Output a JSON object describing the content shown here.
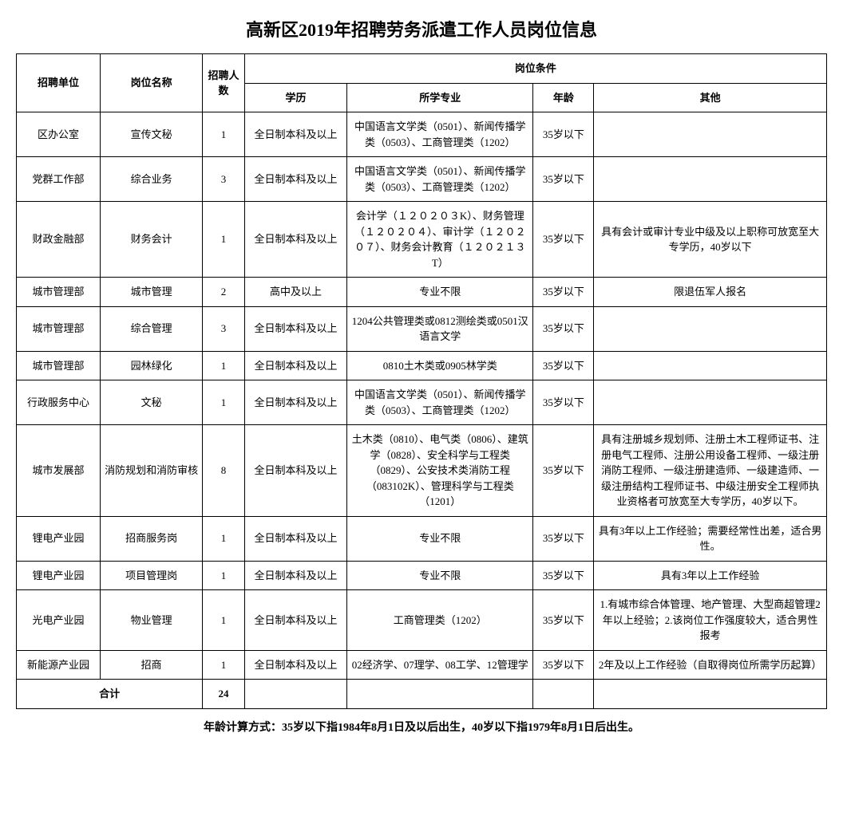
{
  "title": "高新区2019年招聘劳务派遣工作人员岗位信息",
  "headers": {
    "unit": "招聘单位",
    "position": "岗位名称",
    "count": "招聘人数",
    "conditions": "岗位条件",
    "education": "学历",
    "major": "所学专业",
    "age": "年龄",
    "other": "其他"
  },
  "rows": [
    {
      "unit": "区办公室",
      "position": "宣传文秘",
      "count": "1",
      "education": "全日制本科及以上",
      "major": "中国语言文学类（0501）、新闻传播学类（0503）、工商管理类（1202）",
      "age": "35岁以下",
      "other": ""
    },
    {
      "unit": "党群工作部",
      "position": "综合业务",
      "count": "3",
      "education": "全日制本科及以上",
      "major": "中国语言文学类（0501）、新闻传播学类（0503）、工商管理类（1202）",
      "age": "35岁以下",
      "other": ""
    },
    {
      "unit": "财政金融部",
      "position": "财务会计",
      "count": "1",
      "education": "全日制本科及以上",
      "major": "会计学（１２０２０３K）、财务管理（１２０２０４）、审计学（１２０２０７）、财务会计教育（１２０２１３T）",
      "age": "35岁以下",
      "other": "具有会计或审计专业中级及以上职称可放宽至大专学历，40岁以下"
    },
    {
      "unit": "城市管理部",
      "position": "城市管理",
      "count": "2",
      "education": "高中及以上",
      "major": "专业不限",
      "age": "35岁以下",
      "other": "限退伍军人报名"
    },
    {
      "unit": "城市管理部",
      "position": "综合管理",
      "count": "3",
      "education": "全日制本科及以上",
      "major": "1204公共管理类或0812测绘类或0501汉语言文学",
      "age": "35岁以下",
      "other": ""
    },
    {
      "unit": "城市管理部",
      "position": "园林绿化",
      "count": "1",
      "education": "全日制本科及以上",
      "major": "0810土木类或0905林学类",
      "age": "35岁以下",
      "other": ""
    },
    {
      "unit": "行政服务中心",
      "position": "文秘",
      "count": "1",
      "education": "全日制本科及以上",
      "major": "中国语言文学类（0501）、新闻传播学类（0503）、工商管理类（1202）",
      "age": "35岁以下",
      "other": ""
    },
    {
      "unit": "城市发展部",
      "position": "消防规划和消防审核",
      "count": "8",
      "education": "全日制本科及以上",
      "major": "土木类（0810）、电气类（0806）、建筑学（0828）、安全科学与工程类（0829）、公安技术类消防工程（083102K）、管理科学与工程类（1201）",
      "age": "35岁以下",
      "other": "具有注册城乡规划师、注册土木工程师证书、注册电气工程师、注册公用设备工程师、一级注册消防工程师、一级注册建造师、一级建造师、一级注册结构工程师证书、中级注册安全工程师执业资格者可放宽至大专学历，40岁以下。"
    },
    {
      "unit": "锂电产业园",
      "position": "招商服务岗",
      "count": "1",
      "education": "全日制本科及以上",
      "major": "专业不限",
      "age": "35岁以下",
      "other": "具有3年以上工作经验；需要经常性出差，适合男性。"
    },
    {
      "unit": "锂电产业园",
      "position": "项目管理岗",
      "count": "1",
      "education": "全日制本科及以上",
      "major": "专业不限",
      "age": "35岁以下",
      "other": "具有3年以上工作经验"
    },
    {
      "unit": "光电产业园",
      "position": "物业管理",
      "count": "1",
      "education": "全日制本科及以上",
      "major": "工商管理类（1202）",
      "age": "35岁以下",
      "other": "1.有城市综合体管理、地产管理、大型商超管理2年以上经验；2.该岗位工作强度较大，适合男性报考"
    },
    {
      "unit": "新能源产业园",
      "position": "招商",
      "count": "1",
      "education": "全日制本科及以上",
      "major": "02经济学、07理学、08工学、12管理学",
      "age": "35岁以下",
      "other": "2年及以上工作经验（自取得岗位所需学历起算）"
    }
  ],
  "total": {
    "label": "合计",
    "count": "24"
  },
  "footnote": "年龄计算方式：35岁以下指1984年8月1日及以后出生，40岁以下指1979年8月1日后出生。"
}
